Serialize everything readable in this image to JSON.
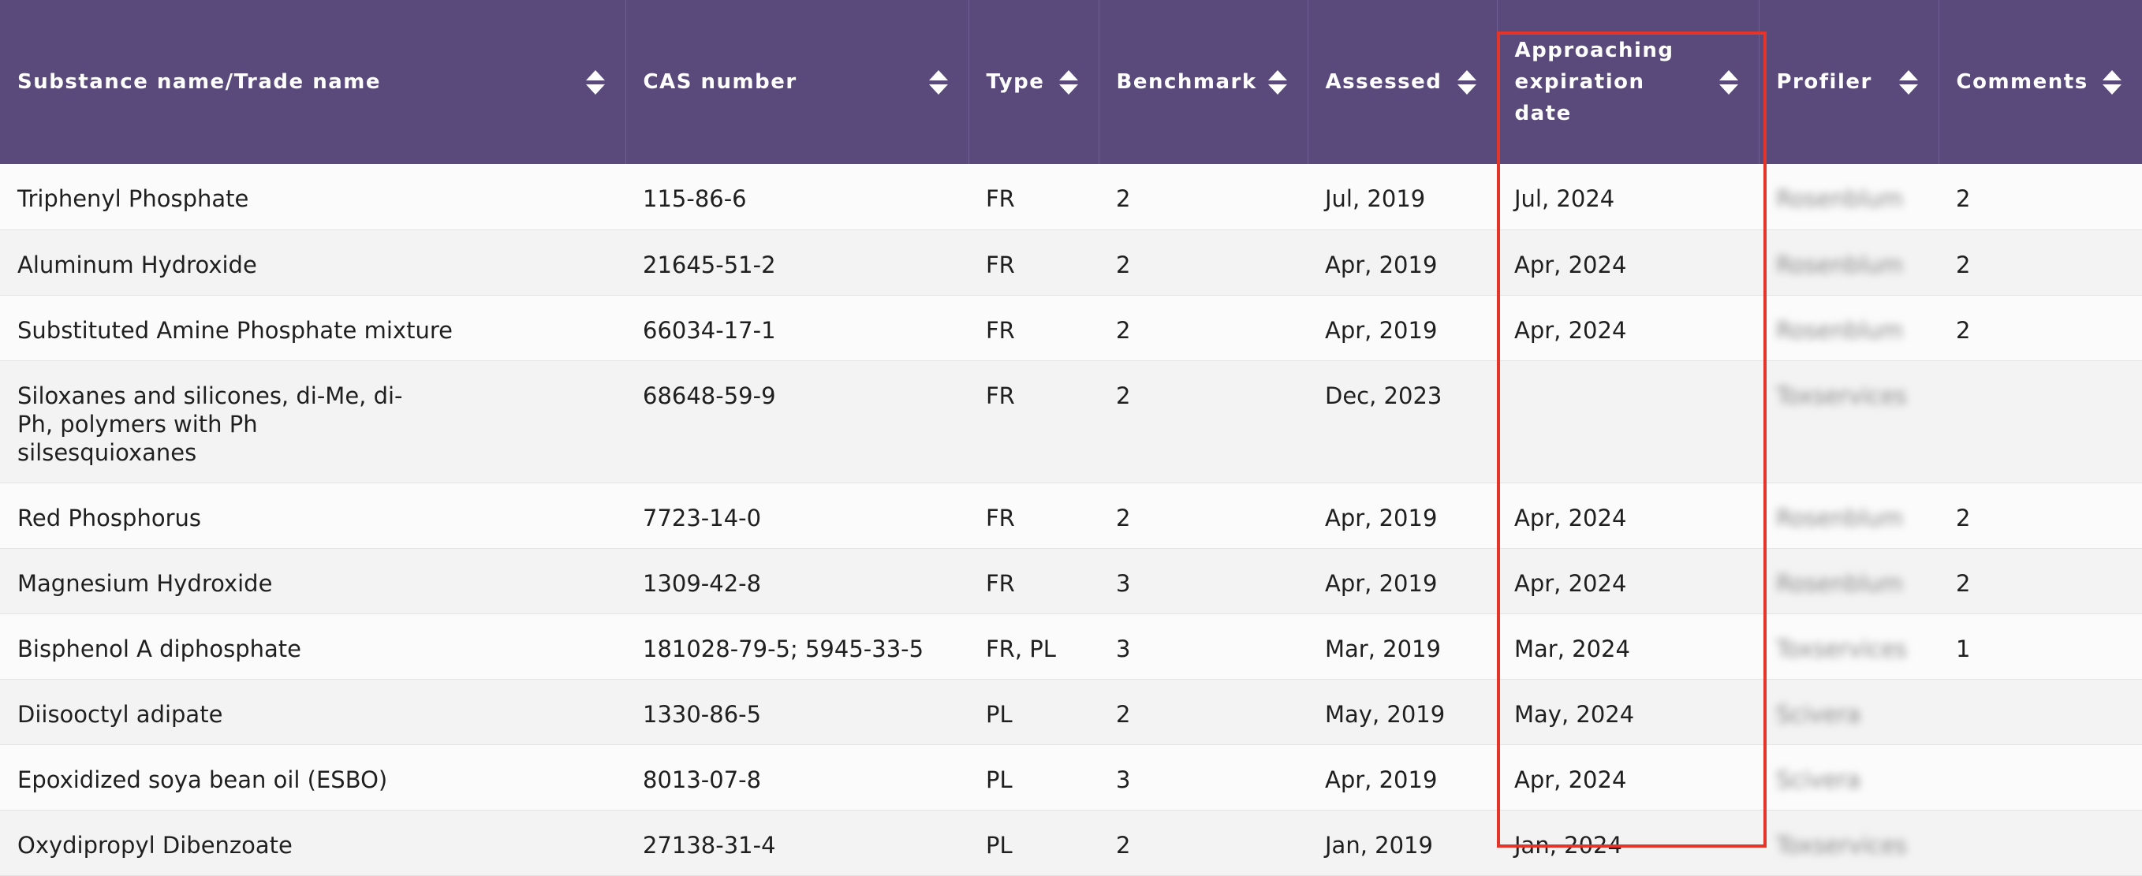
{
  "table": {
    "columns": [
      {
        "key": "name",
        "label": "Substance name/Trade name"
      },
      {
        "key": "cas",
        "label": "CAS number"
      },
      {
        "key": "type",
        "label": "Type"
      },
      {
        "key": "benchmark",
        "label": "Benchmark"
      },
      {
        "key": "assessed",
        "label": "Assessed"
      },
      {
        "key": "expiration",
        "label": "Approaching expiration date"
      },
      {
        "key": "profiler",
        "label": "Profiler"
      },
      {
        "key": "comments",
        "label": "Comments"
      }
    ],
    "rows": [
      {
        "name": "Triphenyl Phosphate",
        "cas": "115-86-6",
        "type": "FR",
        "benchmark": "2",
        "assessed": "Jul, 2019",
        "expiration": "Jul, 2024",
        "profiler": "Rosenblum",
        "comments": "2"
      },
      {
        "name": "Aluminum Hydroxide",
        "cas": "21645-51-2",
        "type": "FR",
        "benchmark": "2",
        "assessed": "Apr, 2019",
        "expiration": "Apr, 2024",
        "profiler": "Rosenblum",
        "comments": "2"
      },
      {
        "name": "Substituted Amine Phosphate mixture",
        "cas": "66034-17-1",
        "type": "FR",
        "benchmark": "2",
        "assessed": "Apr, 2019",
        "expiration": "Apr, 2024",
        "profiler": "Rosenblum",
        "comments": "2"
      },
      {
        "name": "Siloxanes and silicones, di-Me, di-Ph, polymers with Ph silsesquioxanes",
        "cas": "68648-59-9",
        "type": "FR",
        "benchmark": "2",
        "assessed": "Dec, 2023",
        "expiration": "",
        "profiler": "Toxservices",
        "comments": ""
      },
      {
        "name": "Red Phosphorus",
        "cas": "7723-14-0",
        "type": "FR",
        "benchmark": "2",
        "assessed": "Apr, 2019",
        "expiration": "Apr, 2024",
        "profiler": "Rosenblum",
        "comments": "2"
      },
      {
        "name": "Magnesium Hydroxide",
        "cas": "1309-42-8",
        "type": "FR",
        "benchmark": "3",
        "assessed": "Apr, 2019",
        "expiration": "Apr, 2024",
        "profiler": "Rosenblum",
        "comments": "2"
      },
      {
        "name": "Bisphenol A diphosphate",
        "cas": "181028-79-5; 5945-33-5",
        "type": "FR, PL",
        "benchmark": "3",
        "assessed": "Mar, 2019",
        "expiration": "Mar, 2024",
        "profiler": "Toxservices",
        "comments": "1"
      },
      {
        "name": "Diisooctyl adipate",
        "cas": "1330-86-5",
        "type": "PL",
        "benchmark": "2",
        "assessed": "May, 2019",
        "expiration": "May, 2024",
        "profiler": "Scivera",
        "comments": ""
      },
      {
        "name": "Epoxidized soya bean oil (ESBO)",
        "cas": "8013-07-8",
        "type": "PL",
        "benchmark": "3",
        "assessed": "Apr, 2019",
        "expiration": "Apr, 2024",
        "profiler": "Scivera",
        "comments": ""
      },
      {
        "name": "Oxydipropyl Dibenzoate",
        "cas": "27138-31-4",
        "type": "PL",
        "benchmark": "2",
        "assessed": "Jan, 2019",
        "expiration": "Jan, 2024",
        "profiler": "Toxservices",
        "comments": ""
      }
    ]
  },
  "highlight": {
    "column": "expiration",
    "color": "#e4352b"
  },
  "colors": {
    "header_bg": "#5a4a7c",
    "header_text": "#ffffff",
    "row_odd": "#fbfbfb",
    "row_even": "#f3f3f3"
  },
  "icons": {
    "sort": "sort-updown-icon"
  }
}
